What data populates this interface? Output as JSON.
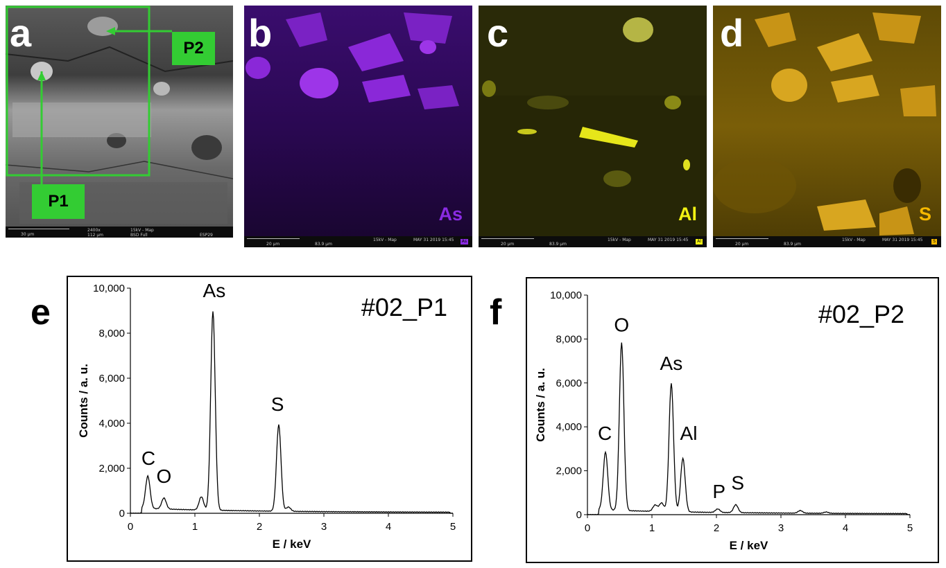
{
  "panels": {
    "a": {
      "letter": "a",
      "tag_p1": "P1",
      "tag_p2": "P2",
      "bar": {
        "scale": "30 µm",
        "mag": "2400x",
        "hfw": "112 µm",
        "mode": "15kV - Map",
        "detector": "BSD Full",
        "id": "ESP29"
      }
    },
    "b": {
      "letter": "b",
      "element": "As",
      "color": "#8a2be2",
      "bar": {
        "scale": "20 µm",
        "hfw": "83.9 µm",
        "mode": "15kV - Map",
        "date": "MAY 31 2019 15:45"
      }
    },
    "c": {
      "letter": "c",
      "element": "Al",
      "color": "#f2f213",
      "bar": {
        "scale": "20 µm",
        "hfw": "83.9 µm",
        "mode": "15kV - Map",
        "date": "MAY 31 2019 15:45"
      }
    },
    "d": {
      "letter": "d",
      "element": "S",
      "color": "#f5b800",
      "bar": {
        "scale": "20 µm",
        "hfw": "83.9 µm",
        "mode": "15kV - Map",
        "date": "MAY 31 2019 15:45"
      }
    }
  },
  "chart_labels": {
    "e": "e",
    "f": "f"
  },
  "chart_data": [
    {
      "type": "line",
      "panel": "e",
      "title": "#02_P1",
      "xlabel": "E / keV",
      "ylabel": "Counts / a. u.",
      "xlim": [
        0,
        5
      ],
      "ylim": [
        0,
        10000
      ],
      "xticks": [
        0,
        1,
        2,
        3,
        4,
        5
      ],
      "yticks": [
        0,
        2000,
        4000,
        6000,
        8000,
        10000
      ],
      "ytick_labels": [
        "0",
        "2,000",
        "4,000",
        "6,000",
        "8,000",
        "10,000"
      ],
      "peaks": [
        {
          "label": "C",
          "x": 0.27,
          "y": 1500
        },
        {
          "label": "O",
          "x": 0.52,
          "y": 550
        },
        {
          "label": "",
          "x": 1.1,
          "y": 650
        },
        {
          "label": "As",
          "x": 1.28,
          "y": 8900
        },
        {
          "label": "S",
          "x": 2.3,
          "y": 3900
        },
        {
          "label": "",
          "x": 2.45,
          "y": 250
        }
      ],
      "annotations": [
        {
          "text": "C",
          "x": 0.28,
          "y": 2150
        },
        {
          "text": "O",
          "x": 0.52,
          "y": 1350
        },
        {
          "text": "As",
          "x": 1.3,
          "y": 9600
        },
        {
          "text": "S",
          "x": 2.28,
          "y": 4550
        }
      ]
    },
    {
      "type": "line",
      "panel": "f",
      "title": "#02_P2",
      "xlabel": "E / keV",
      "ylabel": "Counts / a. u.",
      "xlim": [
        0,
        5
      ],
      "ylim": [
        0,
        10000
      ],
      "xticks": [
        0,
        1,
        2,
        3,
        4,
        5
      ],
      "yticks": [
        0,
        2000,
        4000,
        6000,
        8000,
        10000
      ],
      "ytick_labels": [
        "0",
        "2,000",
        "4,000",
        "6,000",
        "8,000",
        "10,000"
      ],
      "peaks": [
        {
          "label": "C",
          "x": 0.28,
          "y": 2700
        },
        {
          "label": "O",
          "x": 0.53,
          "y": 7700
        },
        {
          "label": "",
          "x": 1.05,
          "y": 350
        },
        {
          "label": "",
          "x": 1.15,
          "y": 450
        },
        {
          "label": "As",
          "x": 1.3,
          "y": 5900
        },
        {
          "label": "Al",
          "x": 1.48,
          "y": 2500
        },
        {
          "label": "P",
          "x": 2.02,
          "y": 220
        },
        {
          "label": "S",
          "x": 2.3,
          "y": 420
        },
        {
          "label": "",
          "x": 3.3,
          "y": 180
        },
        {
          "label": "",
          "x": 3.7,
          "y": 120
        }
      ],
      "annotations": [
        {
          "text": "C",
          "x": 0.27,
          "y": 3400
        },
        {
          "text": "O",
          "x": 0.53,
          "y": 8350
        },
        {
          "text": "As",
          "x": 1.3,
          "y": 6600
        },
        {
          "text": "Al",
          "x": 1.57,
          "y": 3400
        },
        {
          "text": "P",
          "x": 2.04,
          "y": 750
        },
        {
          "text": "S",
          "x": 2.33,
          "y": 1150
        }
      ]
    }
  ]
}
